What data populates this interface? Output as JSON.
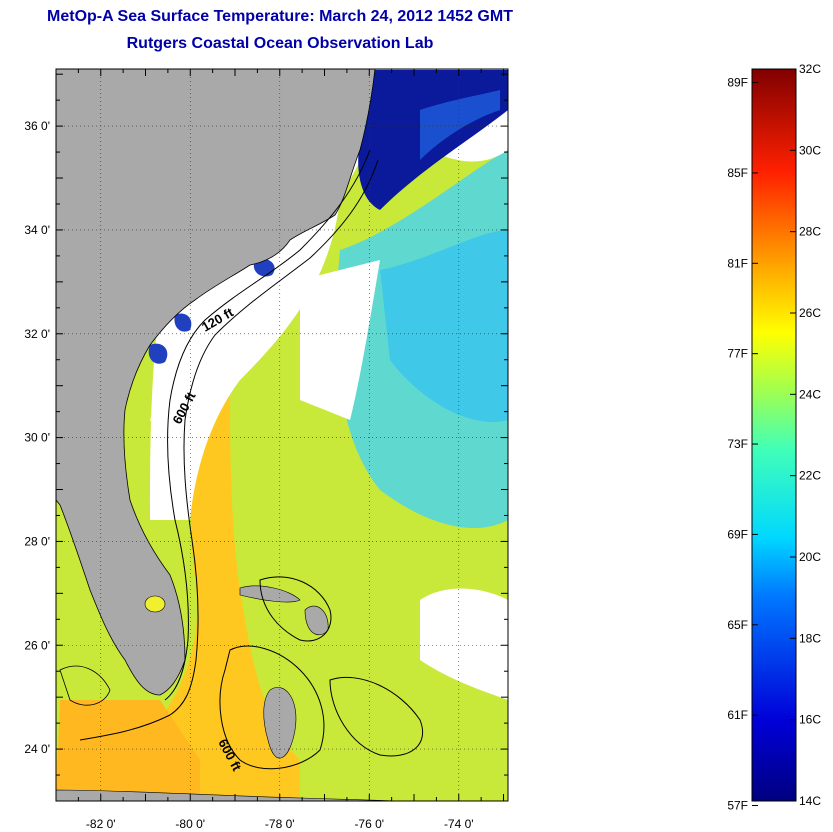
{
  "title": {
    "line1": "MetOp-A Sea Surface Temperature:  March 24, 2012 1452 GMT",
    "line2": "Rutgers Coastal Ocean Observation Lab"
  },
  "map": {
    "lat_range": [
      23,
      37.1
    ],
    "lon_range": [
      -83,
      -72.9
    ],
    "lat_ticks": [
      {
        "value": 24,
        "label": "24 0'"
      },
      {
        "value": 26,
        "label": "26 0'"
      },
      {
        "value": 28,
        "label": "28 0'"
      },
      {
        "value": 30,
        "label": "30 0'"
      },
      {
        "value": 32,
        "label": "32 0'"
      },
      {
        "value": 34,
        "label": "34 0'"
      },
      {
        "value": 36,
        "label": "36 0'"
      }
    ],
    "lon_ticks": [
      {
        "value": -82,
        "label": "-82 0'"
      },
      {
        "value": -80,
        "label": "-80 0'"
      },
      {
        "value": -78,
        "label": "-78 0'"
      },
      {
        "value": -76,
        "label": "-76 0'"
      },
      {
        "value": -74,
        "label": "-74 0'"
      }
    ],
    "contour_labels": {
      "c120": "120 ft",
      "c600a": "600 ft",
      "c600b": "600 ft"
    },
    "colors": {
      "land": "#a9a9a9",
      "cloud": "#ffffff",
      "cold": "#0a1a9a",
      "mid": "#40d0e0",
      "warm": "#ffd21e"
    }
  },
  "colorbar": {
    "min_c": 14,
    "max_c": 32,
    "celsius_labels": [
      "32C",
      "30C",
      "28C",
      "26C",
      "24C",
      "22C",
      "20C",
      "18C",
      "16C",
      "14C"
    ],
    "fahrenheit_labels": [
      "89F",
      "85F",
      "81F",
      "77F",
      "73F",
      "69F",
      "65F",
      "61F",
      "57F"
    ]
  }
}
